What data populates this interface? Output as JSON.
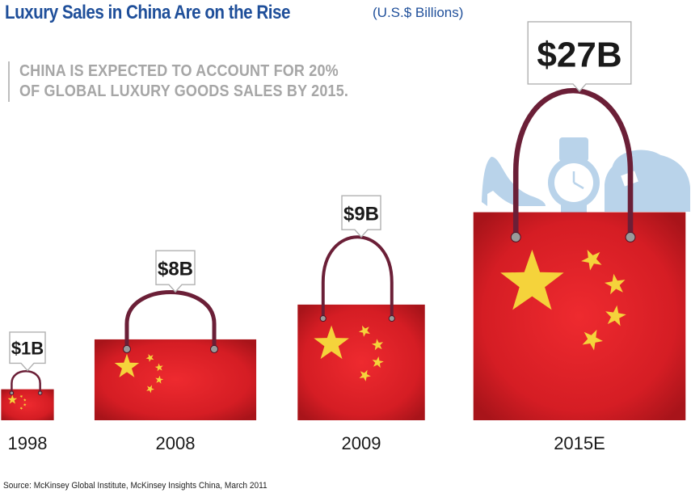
{
  "title": "Luxury Sales in China Are on the Rise",
  "subtitle": "(U.S.$ Billions)",
  "callout_lines": [
    "CHINA IS EXPECTED TO ACCOUNT FOR 20%",
    "OF GLOBAL LUXURY GOODS SALES BY 2015."
  ],
  "source": "Source: McKinsey Global Institute, McKinsey Insights China, March 2011",
  "colors": {
    "title": "#1f4f9a",
    "bag_red": "#e01f26",
    "handle": "#6b1f37",
    "star": "#f5d33b",
    "callout_grey": "#a6a6a6",
    "accessory_blue": "#b9d3ea"
  },
  "chart_data": {
    "type": "bar",
    "categories": [
      "1998",
      "2008",
      "2009",
      "2015E"
    ],
    "values": [
      1,
      8,
      9,
      27
    ],
    "value_labels": [
      "$1B",
      "$8B",
      "$9B",
      "$27B"
    ],
    "unit": "U.S.$ Billions",
    "xlabel": "",
    "ylabel": ""
  }
}
